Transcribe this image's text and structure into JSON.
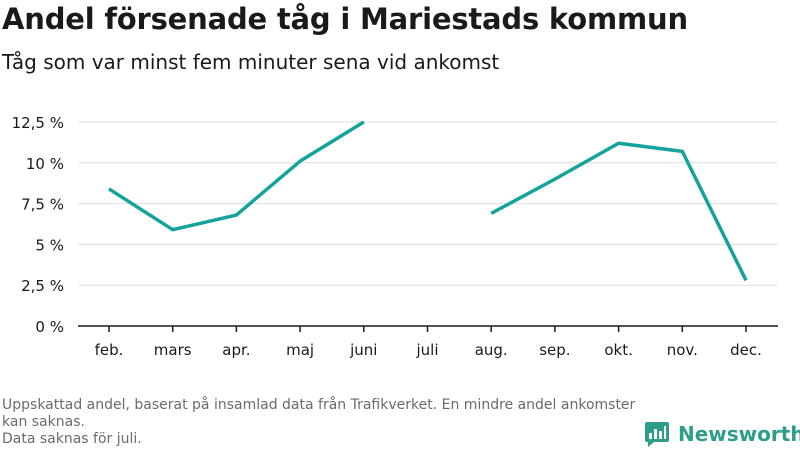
{
  "title": "Andel försenade tåg i Mariestads kommun",
  "subtitle": "Tåg som var minst fem minuter sena vid ankomst",
  "footer": {
    "note1": "Uppskattad andel, baserat på insamlad data från Trafikverket. En mindre andel ankomster kan saknas.",
    "note2": "Data saknas för juli."
  },
  "brand": {
    "name": "Newsworthy",
    "icon": "newsworthy-logo-icon",
    "color": "#2e9d8a"
  },
  "chart_data": {
    "type": "line",
    "categories": [
      "feb.",
      "mars",
      "apr.",
      "maj",
      "juni",
      "juli",
      "aug.",
      "sep.",
      "okt.",
      "nov.",
      "dec."
    ],
    "series": [
      {
        "values": [
          8.4,
          5.9,
          6.8,
          10.1,
          12.5,
          null,
          6.9,
          9.0,
          11.2,
          10.7,
          2.8
        ]
      }
    ],
    "yticks": [
      0,
      2.5,
      5,
      7.5,
      10,
      12.5
    ],
    "ytick_labels": [
      "0 %",
      "2,5 %",
      "5 %",
      "7,5 %",
      "10 %",
      "12,5 %"
    ],
    "ylim": [
      0,
      12.5
    ],
    "grid": true,
    "line_color": "#14a39a",
    "xlabel": "",
    "ylabel": ""
  }
}
